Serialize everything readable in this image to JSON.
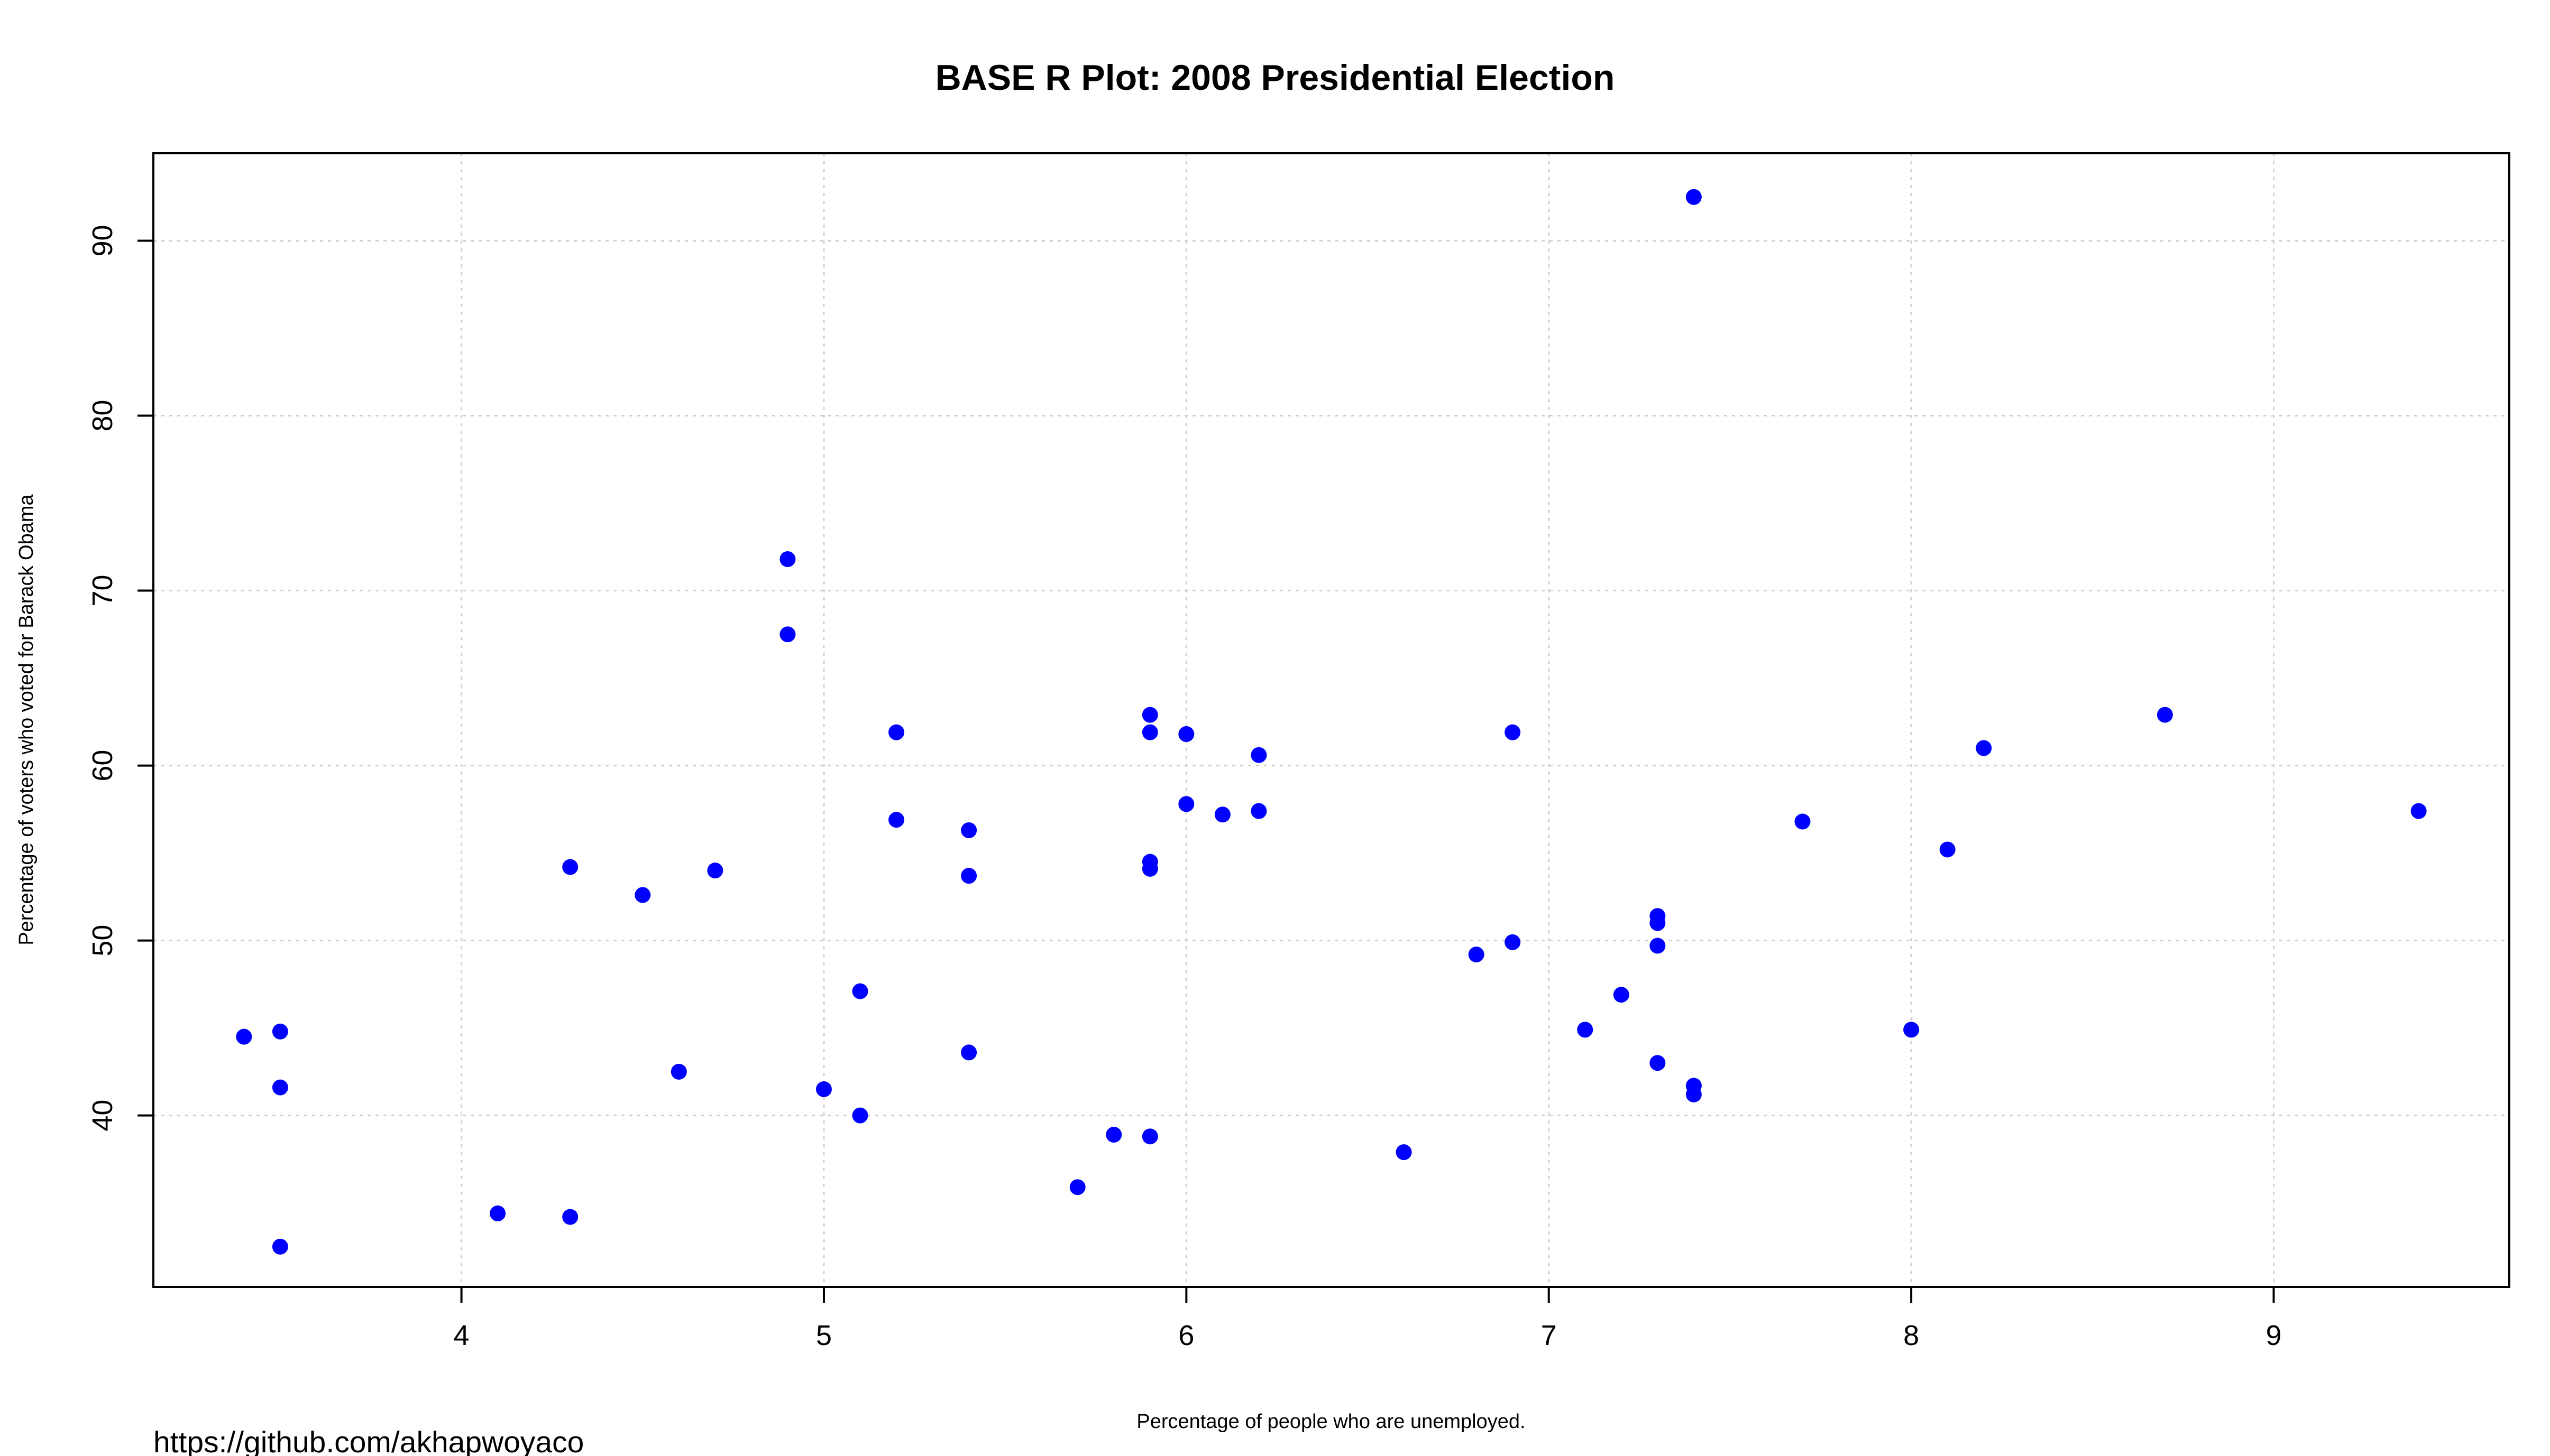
{
  "chart_data": {
    "type": "scatter",
    "title": "BASE R Plot: 2008 Presidential Election",
    "xlabel": "Percentage of people who are unemployed.",
    "ylabel": "Percentage of voters who voted for Barack Obama",
    "xlim": [
      3.15,
      9.65
    ],
    "ylim": [
      30.2,
      95.0
    ],
    "xticks": [
      "4",
      "5",
      "6",
      "7",
      "8",
      "9"
    ],
    "yticks": [
      "40",
      "50",
      "60",
      "70",
      "80",
      "90"
    ],
    "grid": true,
    "point_color": "#0000ff",
    "points": [
      [
        3.4,
        44.5
      ],
      [
        3.5,
        44.8
      ],
      [
        3.5,
        41.6
      ],
      [
        3.5,
        32.5
      ],
      [
        4.1,
        34.4
      ],
      [
        4.3,
        54.2
      ],
      [
        4.3,
        34.2
      ],
      [
        4.5,
        52.6
      ],
      [
        4.6,
        42.5
      ],
      [
        4.7,
        54.0
      ],
      [
        4.9,
        71.8
      ],
      [
        4.9,
        67.5
      ],
      [
        5.0,
        41.5
      ],
      [
        5.1,
        47.1
      ],
      [
        5.1,
        40.0
      ],
      [
        5.2,
        61.9
      ],
      [
        5.2,
        56.9
      ],
      [
        5.4,
        56.3
      ],
      [
        5.4,
        53.7
      ],
      [
        5.4,
        43.6
      ],
      [
        5.7,
        35.9
      ],
      [
        5.8,
        38.9
      ],
      [
        5.9,
        62.9
      ],
      [
        5.9,
        61.9
      ],
      [
        5.9,
        54.5
      ],
      [
        5.9,
        54.1
      ],
      [
        5.9,
        38.8
      ],
      [
        6.0,
        61.8
      ],
      [
        6.0,
        57.8
      ],
      [
        6.1,
        57.2
      ],
      [
        6.2,
        60.6
      ],
      [
        6.2,
        57.4
      ],
      [
        6.6,
        37.9
      ],
      [
        6.8,
        49.2
      ],
      [
        6.9,
        61.9
      ],
      [
        6.9,
        49.9
      ],
      [
        7.1,
        44.9
      ],
      [
        7.2,
        46.9
      ],
      [
        7.3,
        51.4
      ],
      [
        7.3,
        51.0
      ],
      [
        7.3,
        49.7
      ],
      [
        7.3,
        43.0
      ],
      [
        7.4,
        92.5
      ],
      [
        7.4,
        41.7
      ],
      [
        7.4,
        41.2
      ],
      [
        7.7,
        56.8
      ],
      [
        8.0,
        44.9
      ],
      [
        8.1,
        55.2
      ],
      [
        8.2,
        61.0
      ],
      [
        8.7,
        62.9
      ],
      [
        9.4,
        57.4
      ]
    ]
  },
  "caption": "https://github.com/akhapwoyaco"
}
